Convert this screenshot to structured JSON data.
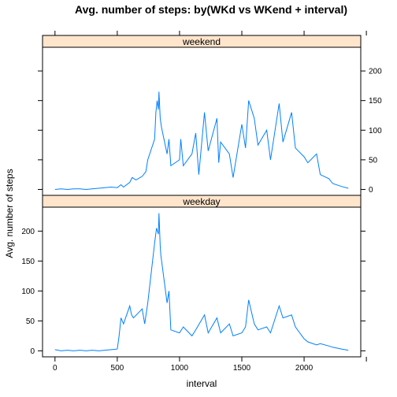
{
  "chart_data": {
    "type": "line",
    "title": "Avg. number of steps: by(WKd vs WKend + interval)",
    "xlabel": "interval",
    "ylabel": "Avg. number of steps",
    "xlim": [
      -100,
      2455
    ],
    "ylim": [
      -10,
      240
    ],
    "x_ticks": [
      0,
      500,
      1000,
      1500,
      2000
    ],
    "y_ticks": [
      0,
      50,
      100,
      150,
      200
    ],
    "line_color": "#0080ff",
    "strip_color": "#ffe5cc",
    "grid": false,
    "panels": [
      {
        "name": "weekend",
        "x": [
          0,
          50,
          100,
          150,
          200,
          250,
          300,
          350,
          400,
          450,
          500,
          530,
          550,
          600,
          620,
          650,
          700,
          730,
          745,
          800,
          810,
          820,
          830,
          835,
          845,
          855,
          900,
          915,
          930,
          1000,
          1010,
          1030,
          1100,
          1130,
          1155,
          1200,
          1230,
          1300,
          1315,
          1330,
          1400,
          1430,
          1500,
          1530,
          1555,
          1600,
          1630,
          1700,
          1730,
          1800,
          1830,
          1900,
          1930,
          2000,
          2030,
          2100,
          2130,
          2200,
          2230,
          2300,
          2355
        ],
        "values": [
          0,
          1,
          0,
          1,
          1,
          0,
          1,
          2,
          3,
          4,
          3,
          8,
          4,
          12,
          20,
          16,
          22,
          30,
          50,
          85,
          130,
          150,
          135,
          165,
          120,
          105,
          60,
          85,
          40,
          50,
          85,
          40,
          60,
          95,
          25,
          130,
          65,
          120,
          45,
          80,
          60,
          20,
          110,
          70,
          150,
          120,
          75,
          100,
          50,
          145,
          80,
          130,
          70,
          55,
          45,
          60,
          25,
          18,
          10,
          5,
          2
        ]
      },
      {
        "name": "weekday",
        "x": [
          0,
          50,
          100,
          150,
          200,
          250,
          300,
          350,
          400,
          450,
          500,
          515,
          530,
          550,
          600,
          615,
          630,
          700,
          720,
          745,
          800,
          815,
          830,
          835,
          845,
          850,
          900,
          915,
          930,
          1000,
          1030,
          1100,
          1130,
          1200,
          1230,
          1300,
          1330,
          1400,
          1430,
          1500,
          1530,
          1555,
          1600,
          1630,
          1700,
          1730,
          1800,
          1830,
          1900,
          1930,
          2000,
          2030,
          2100,
          2130,
          2200,
          2230,
          2300,
          2355
        ],
        "values": [
          2,
          0,
          1,
          0,
          1,
          0,
          1,
          0,
          1,
          2,
          3,
          25,
          55,
          45,
          75,
          60,
          55,
          70,
          45,
          80,
          180,
          205,
          195,
          230,
          175,
          160,
          80,
          100,
          35,
          30,
          40,
          25,
          35,
          60,
          30,
          55,
          30,
          45,
          25,
          30,
          40,
          85,
          45,
          35,
          40,
          30,
          75,
          55,
          60,
          40,
          20,
          15,
          10,
          12,
          8,
          6,
          3,
          1
        ]
      }
    ]
  }
}
